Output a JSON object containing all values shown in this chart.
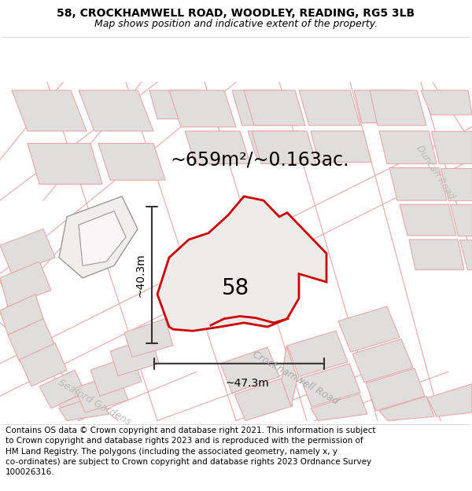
{
  "title_line1": "58, CROCKHAMWELL ROAD, WOODLEY, READING, RG5 3LB",
  "title_line2": "Map shows position and indicative extent of the property.",
  "area_label": "~659m²/~0.163ac.",
  "width_label": "~47.3m",
  "height_label": "~40.3m",
  "property_number": "58",
  "road_label1": "Crockhamwell Road",
  "road_label2": "Seaford Gardens",
  "road_label3": "Duncan Road",
  "footer_text": "Contains OS data © Crown copyright and database right 2021. This information is subject to Crown copyright and database rights 2023 and is reproduced with the permission of HM Land Registry. The polygons (including the associated geometry, namely x, y co-ordinates) are subject to Crown copyright and database rights 2023 Ordnance Survey 100026316.",
  "map_bg": "#f7f5f5",
  "block_fill": "#e0dddd",
  "block_edge": "#e8a8a8",
  "road_line": "#e8a8a8",
  "dark_outline": "#999999",
  "property_fill": "#eeebe9",
  "property_stroke": "#cc0000",
  "dim_color": "#444444",
  "title_fontsize": 10,
  "subtitle_fontsize": 9,
  "area_fontsize": 17,
  "dim_fontsize": 10,
  "property_num_fontsize": 20,
  "road_label_fontsize": 9,
  "footer_fontsize": 7.5
}
